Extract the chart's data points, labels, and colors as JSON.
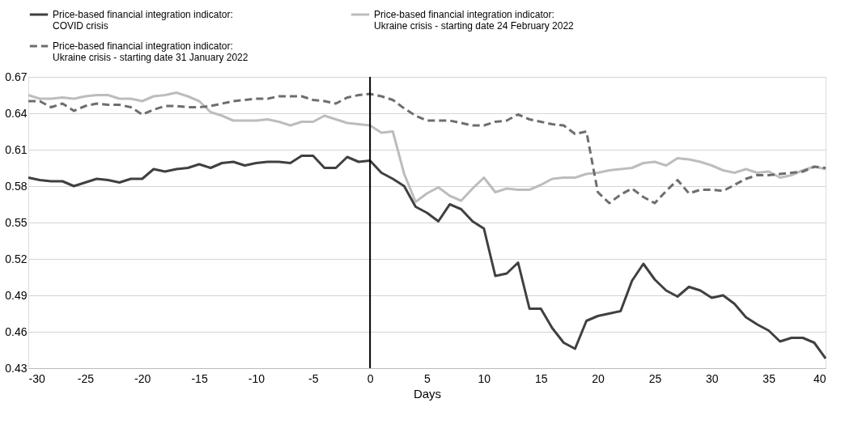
{
  "chart_data": {
    "type": "line",
    "xlabel": "Days",
    "x": [
      -30,
      -29,
      -28,
      -27,
      -26,
      -25,
      -24,
      -23,
      -22,
      -21,
      -20,
      -19,
      -18,
      -17,
      -16,
      -15,
      -14,
      -13,
      -12,
      -11,
      -10,
      -9,
      -8,
      -7,
      -6,
      -5,
      -4,
      -3,
      -2,
      -1,
      0,
      1,
      2,
      3,
      4,
      5,
      6,
      7,
      8,
      9,
      10,
      11,
      12,
      13,
      14,
      15,
      16,
      17,
      18,
      19,
      20,
      21,
      22,
      23,
      24,
      25,
      26,
      27,
      28,
      29,
      30,
      31,
      32,
      33,
      34,
      35,
      36,
      37,
      38,
      39,
      40
    ],
    "series": [
      {
        "name": "Price-based financial integration indicator: COVID crisis",
        "color": "#404040",
        "line_style": "solid",
        "values": [
          0.587,
          0.585,
          0.584,
          0.584,
          0.58,
          0.583,
          0.586,
          0.585,
          0.583,
          0.586,
          0.586,
          0.594,
          0.592,
          0.594,
          0.595,
          0.598,
          0.595,
          0.599,
          0.6,
          0.597,
          0.599,
          0.6,
          0.6,
          0.599,
          0.605,
          0.605,
          0.595,
          0.595,
          0.604,
          0.6,
          0.601,
          0.591,
          0.586,
          0.58,
          0.563,
          0.558,
          0.551,
          0.565,
          0.561,
          0.551,
          0.545,
          0.506,
          0.508,
          0.517,
          0.479,
          0.479,
          0.463,
          0.451,
          0.446,
          0.469,
          0.473,
          0.475,
          0.477,
          0.502,
          0.516,
          0.503,
          0.494,
          0.489,
          0.497,
          0.494,
          0.488,
          0.49,
          0.483,
          0.472,
          0.466,
          0.461,
          0.452,
          0.455,
          0.455,
          0.451,
          0.438
        ]
      },
      {
        "name": "Price-based financial integration indicator: Ukraine crisis - starting date 24 February 2022",
        "color": "#bdbdbd",
        "line_style": "solid",
        "values": [
          0.655,
          0.652,
          0.652,
          0.653,
          0.652,
          0.654,
          0.655,
          0.655,
          0.652,
          0.652,
          0.65,
          0.654,
          0.655,
          0.657,
          0.654,
          0.65,
          0.641,
          0.638,
          0.634,
          0.634,
          0.634,
          0.635,
          0.633,
          0.63,
          0.633,
          0.633,
          0.638,
          0.635,
          0.632,
          0.631,
          0.63,
          0.624,
          0.625,
          0.59,
          0.567,
          0.574,
          0.579,
          0.572,
          0.568,
          0.578,
          0.587,
          0.575,
          0.578,
          0.577,
          0.577,
          0.581,
          0.586,
          0.587,
          0.587,
          0.59,
          0.591,
          0.593,
          0.594,
          0.595,
          0.599,
          0.6,
          0.597,
          0.603,
          0.602,
          0.6,
          0.597,
          0.593,
          0.591,
          0.594,
          0.591,
          0.592,
          0.587,
          0.589,
          0.593,
          0.596,
          0.594
        ]
      },
      {
        "name": "Price-based financial integration indicator: Ukraine crisis - starting date 31 January 2022",
        "color": "#6e6e6e",
        "line_style": "dashed",
        "values": [
          0.65,
          0.65,
          0.645,
          0.648,
          0.642,
          0.646,
          0.648,
          0.647,
          0.647,
          0.645,
          0.639,
          0.643,
          0.646,
          0.646,
          0.645,
          0.645,
          0.646,
          0.648,
          0.65,
          0.651,
          0.652,
          0.652,
          0.654,
          0.654,
          0.654,
          0.651,
          0.65,
          0.648,
          0.653,
          0.655,
          0.656,
          0.654,
          0.651,
          0.644,
          0.638,
          0.634,
          0.634,
          0.634,
          0.632,
          0.63,
          0.63,
          0.633,
          0.634,
          0.639,
          0.635,
          0.633,
          0.631,
          0.63,
          0.623,
          0.625,
          0.575,
          0.566,
          0.573,
          0.578,
          0.571,
          0.566,
          0.576,
          0.585,
          0.574,
          0.577,
          0.577,
          0.576,
          0.581,
          0.586,
          0.589,
          0.589,
          0.59,
          0.591,
          0.592,
          0.596,
          0.595
        ]
      }
    ],
    "xlim": [
      -30,
      40
    ],
    "xticks": [
      -30,
      -25,
      -20,
      -15,
      -10,
      -5,
      0,
      5,
      10,
      15,
      20,
      25,
      30,
      35,
      40
    ],
    "ylim": [
      0.43,
      0.67
    ],
    "yticks": [
      0.43,
      0.46,
      0.49,
      0.52,
      0.55,
      0.58,
      0.61,
      0.64,
      0.67
    ],
    "grid": "y",
    "legend": "top",
    "ref_lines": [
      {
        "axis": "x",
        "value": 0,
        "color": "#000000"
      }
    ]
  }
}
